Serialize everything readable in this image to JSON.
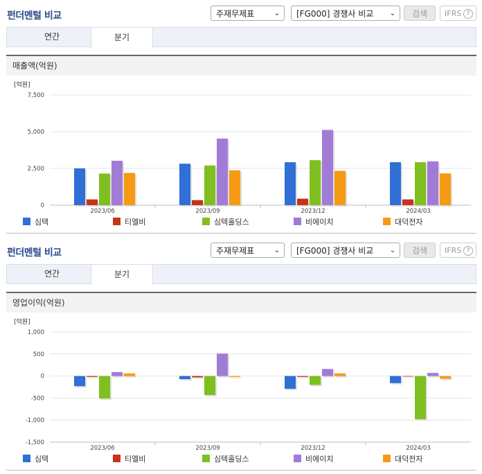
{
  "panels": [
    {
      "title": "펀더멘털 비교",
      "select1": "주재무제표",
      "select2": "[FG000] 경쟁사 비교",
      "search_label": "검색",
      "ifrs_label": "IFRS",
      "tabs": [
        {
          "label": "연간"
        },
        {
          "label": "분기"
        }
      ],
      "active_tab": "분기",
      "section_title": "매출액(억원)"
    },
    {
      "title": "펀더멘털 비교",
      "select1": "주재무제표",
      "select2": "[FG000] 경쟁사 비교",
      "search_label": "검색",
      "ifrs_label": "IFRS",
      "tabs": [
        {
          "label": "연간"
        },
        {
          "label": "분기"
        }
      ],
      "active_tab": "분기",
      "section_title": "영업이익(억원)"
    }
  ],
  "colors": {
    "심텍": "#2f6fd6",
    "티엘비": "#c8321b",
    "심텍홀딩스": "#7fbf1f",
    "비에이치": "#a27bd6",
    "대덕전자": "#f59a12"
  },
  "chart_data": [
    {
      "type": "bar",
      "unit_label": "[억원]",
      "categories": [
        "2023/06",
        "2023/09",
        "2023/12",
        "2024/03"
      ],
      "ylim": [
        0,
        7500
      ],
      "yticks": [
        0,
        2500,
        5000,
        7500
      ],
      "ytick_labels": [
        "0",
        "2,500",
        "5,000",
        "7,500"
      ],
      "series": [
        {
          "name": "심텍",
          "values": [
            2500,
            2820,
            2920,
            2920
          ]
        },
        {
          "name": "티엘비",
          "values": [
            390,
            340,
            440,
            390
          ]
        },
        {
          "name": "심텍홀딩스",
          "values": [
            2150,
            2700,
            3060,
            2920
          ]
        },
        {
          "name": "비에이치",
          "values": [
            3020,
            4530,
            5120,
            2980
          ]
        },
        {
          "name": "대덕전자",
          "values": [
            2190,
            2370,
            2330,
            2160
          ]
        }
      ]
    },
    {
      "type": "bar",
      "unit_label": "[억원]",
      "categories": [
        "2023/06",
        "2023/09",
        "2023/12",
        "2024/03"
      ],
      "ylim": [
        -1500,
        1000
      ],
      "yticks": [
        1000,
        500,
        0,
        -500,
        -1000,
        -1500
      ],
      "ytick_labels": [
        "1,000",
        "500",
        "0",
        "-500",
        "-1,000",
        "-1,500"
      ],
      "series": [
        {
          "name": "심텍",
          "values": [
            -230,
            -70,
            -290,
            -160
          ]
        },
        {
          "name": "티엘비",
          "values": [
            -20,
            -30,
            -20,
            0
          ]
        },
        {
          "name": "심텍홀딩스",
          "values": [
            -510,
            -430,
            -200,
            -980
          ]
        },
        {
          "name": "비에이치",
          "values": [
            90,
            510,
            160,
            70
          ]
        },
        {
          "name": "대덕전자",
          "values": [
            60,
            -20,
            60,
            -60
          ]
        }
      ]
    }
  ]
}
